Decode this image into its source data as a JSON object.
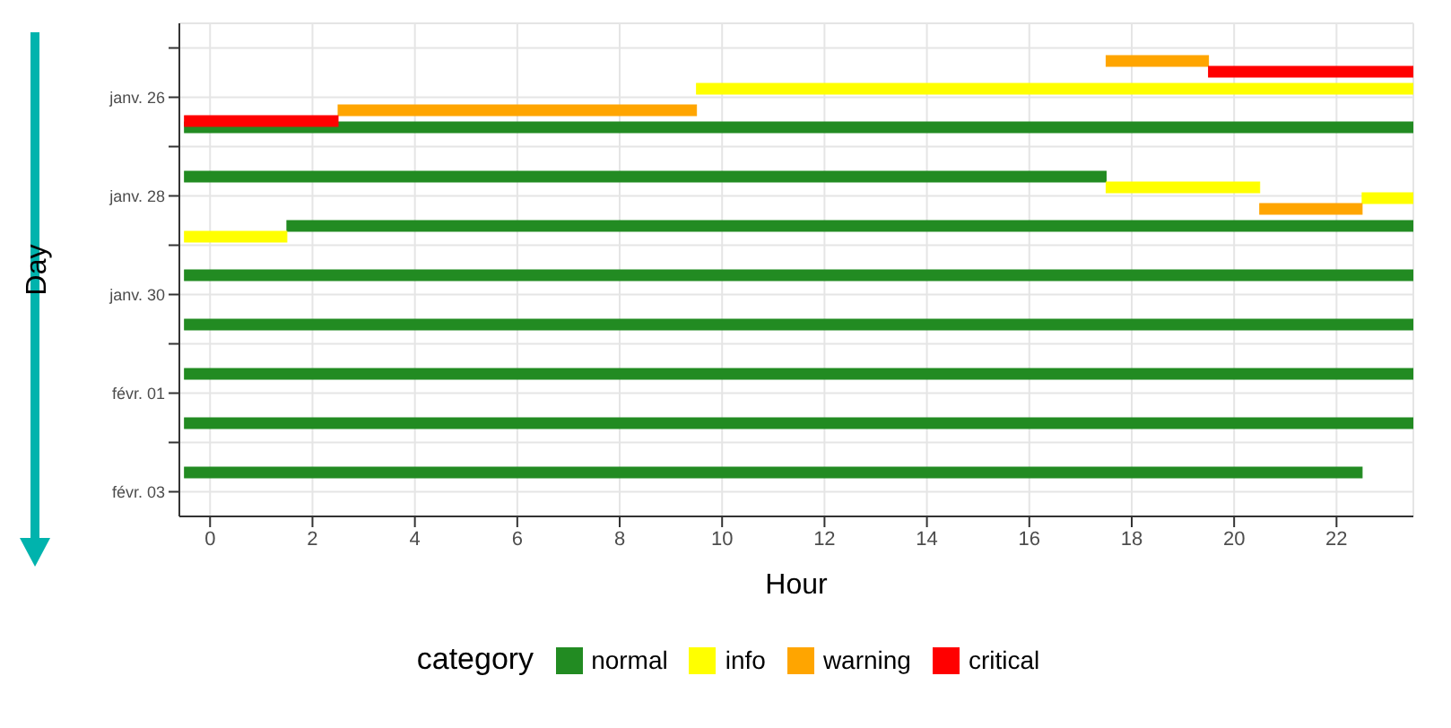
{
  "chart_data": {
    "type": "bar",
    "orientation": "horizontal",
    "xlabel": "Hour",
    "ylabel": "Day",
    "legend_title": "category",
    "legend": "bottom",
    "grid": true,
    "categories": [
      null,
      "janv. 26",
      null,
      "janv. 28",
      null,
      "janv. 30",
      null,
      "févr. 01",
      null,
      "févr. 03"
    ],
    "xlim": [
      -0.6,
      23.5
    ],
    "xticks": [
      0,
      2,
      4,
      6,
      8,
      10,
      12,
      14,
      16,
      18,
      20,
      22
    ],
    "series": [
      {
        "name": "normal",
        "color": "#228b22",
        "base": [
          null,
          null,
          -0.5,
          -0.5,
          1.5,
          -0.5,
          -0.5,
          -0.5,
          -0.5,
          -0.5
        ],
        "values": [
          null,
          null,
          24,
          18,
          22,
          24,
          24,
          24,
          24,
          23
        ]
      },
      {
        "name": "info",
        "color": "#ffff00",
        "base": [
          null,
          9.5,
          null,
          17.5,
          -0.5,
          null,
          null,
          null,
          null,
          null
        ],
        "values": [
          null,
          14,
          null,
          3,
          2,
          null,
          null,
          null,
          null,
          null
        ]
      },
      {
        "color": "#ffff00",
        "base": [
          null,
          null,
          null,
          22.5,
          null,
          null,
          null,
          null,
          null,
          null
        ],
        "values": [
          null,
          null,
          null,
          1,
          null,
          null,
          null,
          null,
          null,
          null
        ]
      },
      {
        "name": "warning",
        "color": "#ffa500",
        "base": [
          17.5,
          2.5,
          null,
          20.5,
          null,
          null,
          null,
          null,
          null,
          null
        ],
        "values": [
          2,
          7,
          null,
          2,
          null,
          null,
          null,
          null,
          null,
          null
        ]
      },
      {
        "name": "critical",
        "color": "#ff0000",
        "base": [
          19.5,
          -0.5,
          null,
          null,
          null,
          null,
          null,
          null,
          null,
          null
        ],
        "values": [
          4,
          3,
          null,
          null,
          null,
          null,
          null,
          null,
          null,
          null
        ]
      }
    ]
  }
}
